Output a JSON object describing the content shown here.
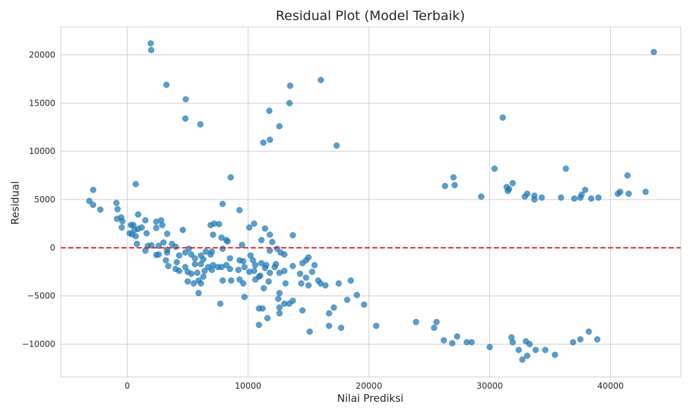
{
  "chart_data": {
    "type": "scatter",
    "title": "Residual Plot (Model Terbaik)",
    "xlabel": "Nilai Prediksi",
    "ylabel": "Residual",
    "xlim": [
      -5500,
      45800
    ],
    "ylim": [
      -13400,
      22900
    ],
    "xticks": [
      0,
      10000,
      20000,
      30000,
      40000
    ],
    "xtick_labels": [
      "0",
      "10000",
      "20000",
      "30000",
      "40000"
    ],
    "yticks": [
      -10000,
      -5000,
      0,
      5000,
      10000,
      15000,
      20000
    ],
    "ytick_labels": [
      "−10000",
      "−5000",
      "0",
      "5000",
      "10000",
      "15000",
      "20000"
    ],
    "grid": true,
    "reference_line": {
      "y": 0,
      "color": "#d62728",
      "style": "dashed"
    },
    "point_color": "#1f77b4",
    "points": [
      [
        1940,
        21200
      ],
      [
        1980,
        20500
      ],
      [
        43580,
        20300
      ],
      [
        3240,
        16900
      ],
      [
        13480,
        16800
      ],
      [
        16030,
        17400
      ],
      [
        4840,
        15400
      ],
      [
        13430,
        15000
      ],
      [
        11760,
        14200
      ],
      [
        4810,
        13400
      ],
      [
        6050,
        12800
      ],
      [
        12590,
        12600
      ],
      [
        31080,
        13500
      ],
      [
        11810,
        11200
      ],
      [
        11260,
        10900
      ],
      [
        17330,
        10600
      ],
      [
        -2820,
        6000
      ],
      [
        -3140,
        4850
      ],
      [
        -2830,
        4450
      ],
      [
        -2230,
        3950
      ],
      [
        700,
        6600
      ],
      [
        8560,
        7300
      ],
      [
        7890,
        4550
      ],
      [
        9290,
        3900
      ],
      [
        -900,
        4650
      ],
      [
        -800,
        4000
      ],
      [
        -500,
        3150
      ],
      [
        -850,
        3000
      ],
      [
        -400,
        2750
      ],
      [
        -450,
        2100
      ],
      [
        300,
        2350
      ],
      [
        500,
        2350
      ],
      [
        900,
        3450
      ],
      [
        1500,
        2850
      ],
      [
        2400,
        2700
      ],
      [
        2800,
        2850
      ],
      [
        2900,
        2350
      ],
      [
        2400,
        2050
      ],
      [
        1200,
        2100
      ],
      [
        900,
        1950
      ],
      [
        600,
        1850
      ],
      [
        200,
        1500
      ],
      [
        400,
        1400
      ],
      [
        700,
        1200
      ],
      [
        1600,
        1500
      ],
      [
        3300,
        1450
      ],
      [
        4600,
        1850
      ],
      [
        6900,
        2350
      ],
      [
        7200,
        2500
      ],
      [
        7600,
        2450
      ],
      [
        7100,
        1350
      ],
      [
        7800,
        1050
      ],
      [
        8200,
        800
      ],
      [
        8300,
        650
      ],
      [
        9500,
        300
      ],
      [
        10100,
        2100
      ],
      [
        10500,
        2500
      ],
      [
        11400,
        2000
      ],
      [
        11800,
        1350
      ],
      [
        11100,
        800
      ],
      [
        12000,
        600
      ],
      [
        12400,
        -100
      ],
      [
        13700,
        1300
      ],
      [
        800,
        400
      ],
      [
        1500,
        -300
      ],
      [
        1700,
        200
      ],
      [
        2000,
        250
      ],
      [
        2600,
        200
      ],
      [
        3000,
        550
      ],
      [
        3300,
        -200
      ],
      [
        3700,
        400
      ],
      [
        3300,
        -500
      ],
      [
        2600,
        -700
      ],
      [
        2400,
        -750
      ],
      [
        4000,
        100
      ],
      [
        4300,
        -800
      ],
      [
        4800,
        -500
      ],
      [
        5100,
        -100
      ],
      [
        5300,
        -700
      ],
      [
        5600,
        -1100
      ],
      [
        6100,
        -800
      ],
      [
        6500,
        -400
      ],
      [
        6900,
        -700
      ],
      [
        7000,
        -400
      ],
      [
        7900,
        -100
      ],
      [
        8500,
        -1100
      ],
      [
        9300,
        -1300
      ],
      [
        9600,
        -1400
      ],
      [
        10200,
        -800
      ],
      [
        10400,
        -1300
      ],
      [
        10600,
        -1800
      ],
      [
        11100,
        -1600
      ],
      [
        11500,
        -1800
      ],
      [
        11800,
        -300
      ],
      [
        12300,
        -1700
      ],
      [
        12700,
        -500
      ],
      [
        13000,
        -700
      ],
      [
        3200,
        -1300
      ],
      [
        3400,
        -1900
      ],
      [
        4000,
        -2200
      ],
      [
        4100,
        -1500
      ],
      [
        4300,
        -2400
      ],
      [
        4800,
        -2000
      ],
      [
        5000,
        -2500
      ],
      [
        5300,
        -2700
      ],
      [
        5600,
        -1700
      ],
      [
        5800,
        -2600
      ],
      [
        6100,
        -1700
      ],
      [
        6300,
        -1200
      ],
      [
        6400,
        -2400
      ],
      [
        6700,
        -2000
      ],
      [
        7000,
        -2300
      ],
      [
        7100,
        -1800
      ],
      [
        7500,
        -2000
      ],
      [
        7800,
        -2000
      ],
      [
        8200,
        -1800
      ],
      [
        8500,
        -2200
      ],
      [
        9200,
        -2300
      ],
      [
        9700,
        -2000
      ],
      [
        10100,
        -2500
      ],
      [
        10500,
        -2400
      ],
      [
        11000,
        -2900
      ],
      [
        11400,
        -2100
      ],
      [
        11800,
        -2600
      ],
      [
        12200,
        -2000
      ],
      [
        12600,
        -2600
      ],
      [
        13000,
        -2400
      ],
      [
        13700,
        -1900
      ],
      [
        14300,
        -2700
      ],
      [
        14500,
        -1600
      ],
      [
        14800,
        -1300
      ],
      [
        15000,
        -1000
      ],
      [
        15300,
        -2500
      ],
      [
        15500,
        -1800
      ],
      [
        5000,
        -3500
      ],
      [
        5500,
        -3700
      ],
      [
        5900,
        -3400
      ],
      [
        6100,
        -3700
      ],
      [
        6300,
        -3000
      ],
      [
        7900,
        -3400
      ],
      [
        8600,
        -3400
      ],
      [
        9300,
        -3300
      ],
      [
        9600,
        -3700
      ],
      [
        10600,
        -3300
      ],
      [
        10900,
        -3000
      ],
      [
        11300,
        -4200
      ],
      [
        11700,
        -3500
      ],
      [
        12600,
        -4700
      ],
      [
        13100,
        -3700
      ],
      [
        14400,
        -3700
      ],
      [
        14800,
        -3100
      ],
      [
        15000,
        -3900
      ],
      [
        15800,
        -3400
      ],
      [
        16000,
        -3700
      ],
      [
        16400,
        -3900
      ],
      [
        17500,
        -3700
      ],
      [
        18500,
        -3400
      ],
      [
        5900,
        -4700
      ],
      [
        7700,
        -5800
      ],
      [
        9700,
        -5100
      ],
      [
        10900,
        -6300
      ],
      [
        11200,
        -6300
      ],
      [
        12500,
        -5300
      ],
      [
        12600,
        -6200
      ],
      [
        13000,
        -5800
      ],
      [
        13400,
        -5800
      ],
      [
        13700,
        -5500
      ],
      [
        14500,
        -6500
      ],
      [
        18200,
        -5400
      ],
      [
        19000,
        -4900
      ],
      [
        19600,
        -5900
      ],
      [
        17100,
        -6200
      ],
      [
        12600,
        -6800
      ],
      [
        16700,
        -6800
      ],
      [
        10900,
        -8000
      ],
      [
        11600,
        -7300
      ],
      [
        15100,
        -8700
      ],
      [
        16700,
        -8100
      ],
      [
        17700,
        -8300
      ],
      [
        20600,
        -8100
      ],
      [
        23900,
        -7700
      ],
      [
        25400,
        -8300
      ],
      [
        25600,
        -7700
      ],
      [
        26200,
        -9600
      ],
      [
        26900,
        -9900
      ],
      [
        27300,
        -9200
      ],
      [
        28100,
        -9800
      ],
      [
        28500,
        -9800
      ],
      [
        30000,
        -10300
      ],
      [
        31800,
        -9300
      ],
      [
        31900,
        -9800
      ],
      [
        32400,
        -10600
      ],
      [
        32700,
        -11600
      ],
      [
        33000,
        -9700
      ],
      [
        33100,
        -11200
      ],
      [
        33300,
        -10000
      ],
      [
        33800,
        -10600
      ],
      [
        34600,
        -10600
      ],
      [
        35400,
        -11100
      ],
      [
        36900,
        -9800
      ],
      [
        37500,
        -9500
      ],
      [
        38200,
        -8700
      ],
      [
        38900,
        -9500
      ],
      [
        26300,
        6400
      ],
      [
        27000,
        7300
      ],
      [
        27100,
        6500
      ],
      [
        29300,
        5300
      ],
      [
        30400,
        8200
      ],
      [
        31400,
        6300
      ],
      [
        31500,
        5900
      ],
      [
        31600,
        6100
      ],
      [
        31900,
        6700
      ],
      [
        32900,
        5300
      ],
      [
        33100,
        5600
      ],
      [
        33700,
        5000
      ],
      [
        33700,
        5400
      ],
      [
        34300,
        5200
      ],
      [
        35900,
        5200
      ],
      [
        36300,
        8200
      ],
      [
        37000,
        5100
      ],
      [
        37500,
        5200
      ],
      [
        37600,
        5500
      ],
      [
        37900,
        6000
      ],
      [
        38400,
        5100
      ],
      [
        39000,
        5200
      ],
      [
        40600,
        5600
      ],
      [
        40800,
        5800
      ],
      [
        41400,
        7500
      ],
      [
        41500,
        5600
      ],
      [
        42900,
        5800
      ]
    ]
  }
}
